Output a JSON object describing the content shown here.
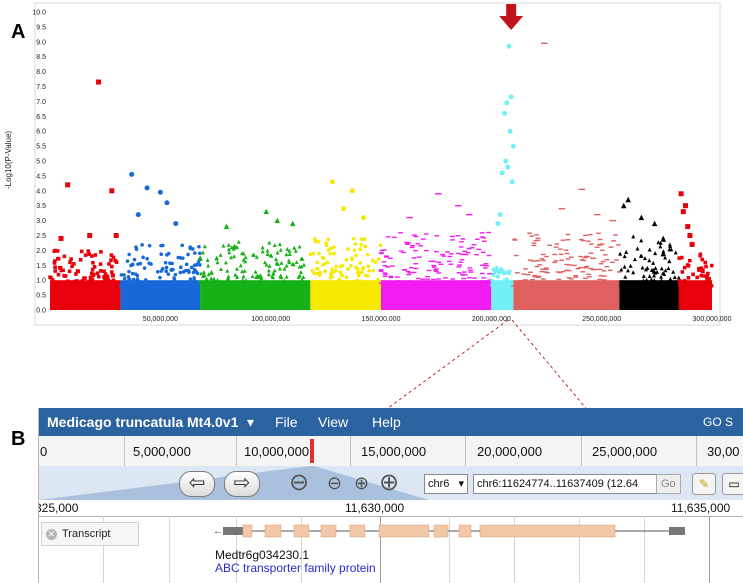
{
  "panels": {
    "a_label": "A",
    "b_label": "B"
  },
  "chart_data": {
    "type": "scatter",
    "ylabel": "-Log10(P-Value)",
    "ylim": [
      0,
      10
    ],
    "xlim": [
      0,
      300000000
    ],
    "y_ticks": [
      "0.0",
      "0.5",
      "1.0",
      "1.5",
      "2.0",
      "2.5",
      "3.0",
      "3.5",
      "4.0",
      "4.5",
      "5.0",
      "5.5",
      "6.0",
      "6.5",
      "7.0",
      "7.5",
      "8.0",
      "8.5",
      "9.0",
      "9.5",
      "10.0"
    ],
    "x_ticks": [
      {
        "value": 50000000,
        "label": "50,000,000"
      },
      {
        "value": 100000000,
        "label": "100,000,000"
      },
      {
        "value": 150000000,
        "label": "150,000,000"
      },
      {
        "value": 200000000,
        "label": "200,000,000"
      },
      {
        "value": 250000000,
        "label": "250,000,000"
      },
      {
        "value": 300000000,
        "label": "300,000,000"
      }
    ],
    "grid": false,
    "series": [
      {
        "chrom": 1,
        "color": "#e8000b",
        "marker": "square",
        "start": 0,
        "end": 32000000,
        "base_max": 2.0,
        "outliers": [
          [
            8000000,
            4.2
          ],
          [
            22000000,
            7.65
          ],
          [
            28000000,
            4.0
          ],
          [
            5000000,
            2.4
          ],
          [
            18000000,
            2.5
          ],
          [
            30000000,
            2.5
          ]
        ]
      },
      {
        "chrom": 2,
        "color": "#1868d8",
        "marker": "circle",
        "start": 32000000,
        "end": 68000000,
        "base_max": 2.2,
        "outliers": [
          [
            37000000,
            4.55
          ],
          [
            44000000,
            4.1
          ],
          [
            50000000,
            3.95
          ],
          [
            53000000,
            3.6
          ],
          [
            40000000,
            3.2
          ],
          [
            57000000,
            2.9
          ]
        ]
      },
      {
        "chrom": 3,
        "color": "#16b116",
        "marker": "triangle",
        "start": 68000000,
        "end": 118000000,
        "base_max": 2.3,
        "outliers": [
          [
            98000000,
            3.3
          ],
          [
            103000000,
            3.0
          ],
          [
            80000000,
            2.8
          ],
          [
            110000000,
            2.9
          ]
        ]
      },
      {
        "chrom": 4,
        "color": "#f5ea00",
        "marker": "circle",
        "start": 118000000,
        "end": 150000000,
        "base_max": 2.4,
        "outliers": [
          [
            128000000,
            4.3
          ],
          [
            137000000,
            4.0
          ],
          [
            133000000,
            3.4
          ],
          [
            142000000,
            3.1
          ]
        ]
      },
      {
        "chrom": 5,
        "color": "#f01cf0",
        "marker": "dash",
        "start": 150000000,
        "end": 200000000,
        "base_max": 2.6,
        "outliers": [
          [
            176000000,
            3.9
          ],
          [
            185000000,
            3.5
          ],
          [
            190000000,
            3.2
          ],
          [
            163000000,
            3.1
          ]
        ]
      },
      {
        "chrom": 6,
        "color": "#73f0f5",
        "marker": "circle",
        "start": 200000000,
        "end": 210000000,
        "base_max": 1.5,
        "outliers": [
          [
            208000000,
            8.85
          ],
          [
            209000000,
            7.15
          ],
          [
            207000000,
            6.95
          ],
          [
            206000000,
            6.6
          ],
          [
            210000000,
            5.5
          ],
          [
            208500000,
            6.0
          ],
          [
            206500000,
            5.0
          ],
          [
            207500000,
            4.8
          ],
          [
            205000000,
            4.6
          ],
          [
            209500000,
            4.3
          ],
          [
            204000000,
            3.2
          ],
          [
            203000000,
            2.9
          ]
        ]
      },
      {
        "chrom": 7,
        "color": "#e06060",
        "marker": "dash",
        "start": 210000000,
        "end": 258000000,
        "base_max": 2.6,
        "outliers": [
          [
            224000000,
            8.95
          ],
          [
            241000000,
            4.05
          ],
          [
            232000000,
            3.4
          ],
          [
            248000000,
            3.2
          ],
          [
            255000000,
            3.0
          ]
        ]
      },
      {
        "chrom": 8,
        "color": "#000000",
        "marker": "triangle",
        "start": 258000000,
        "end": 285000000,
        "base_max": 2.5,
        "outliers": [
          [
            262000000,
            3.7
          ],
          [
            260000000,
            3.5
          ],
          [
            268000000,
            3.1
          ],
          [
            274000000,
            2.9
          ]
        ]
      },
      {
        "chrom": 9,
        "color": "#e8000b",
        "marker": "square",
        "start": 285000000,
        "end": 300000000,
        "base_max": 2.0,
        "outliers": [
          [
            286000000,
            3.9
          ],
          [
            288000000,
            3.5
          ],
          [
            287000000,
            3.3
          ],
          [
            289000000,
            2.8
          ],
          [
            290000000,
            2.5
          ],
          [
            291000000,
            2.2
          ]
        ]
      }
    ],
    "highlight_arrow_x": 209000000
  },
  "browser": {
    "title": "Medicago truncatula Mt4.0v1",
    "title_arrow": "▾",
    "menu": [
      "File",
      "View",
      "Help"
    ],
    "top_right": "GO S",
    "overview_ticks": [
      "0",
      "5,000,000",
      "10,000,000",
      "15,000,000",
      "20,000,000",
      "25,000,000",
      "30,00"
    ],
    "nav": {
      "back_icon": "⇦",
      "forward_icon": "⇨",
      "zoom_out_big": "⊖",
      "zoom_out": "⊖",
      "zoom_in": "⊕",
      "zoom_in_big": "⊕",
      "ref_seq": "chr6",
      "location": "chr6:11624774..11637409 (12.64",
      "go_label": "Go"
    },
    "ruler_ticks": [
      "325,000",
      "11,630,000",
      "11,635,000"
    ],
    "track_label": "Transcript",
    "gene_name": "Medtr6g034230.1",
    "gene_desc": "ABC transporter family protein"
  }
}
